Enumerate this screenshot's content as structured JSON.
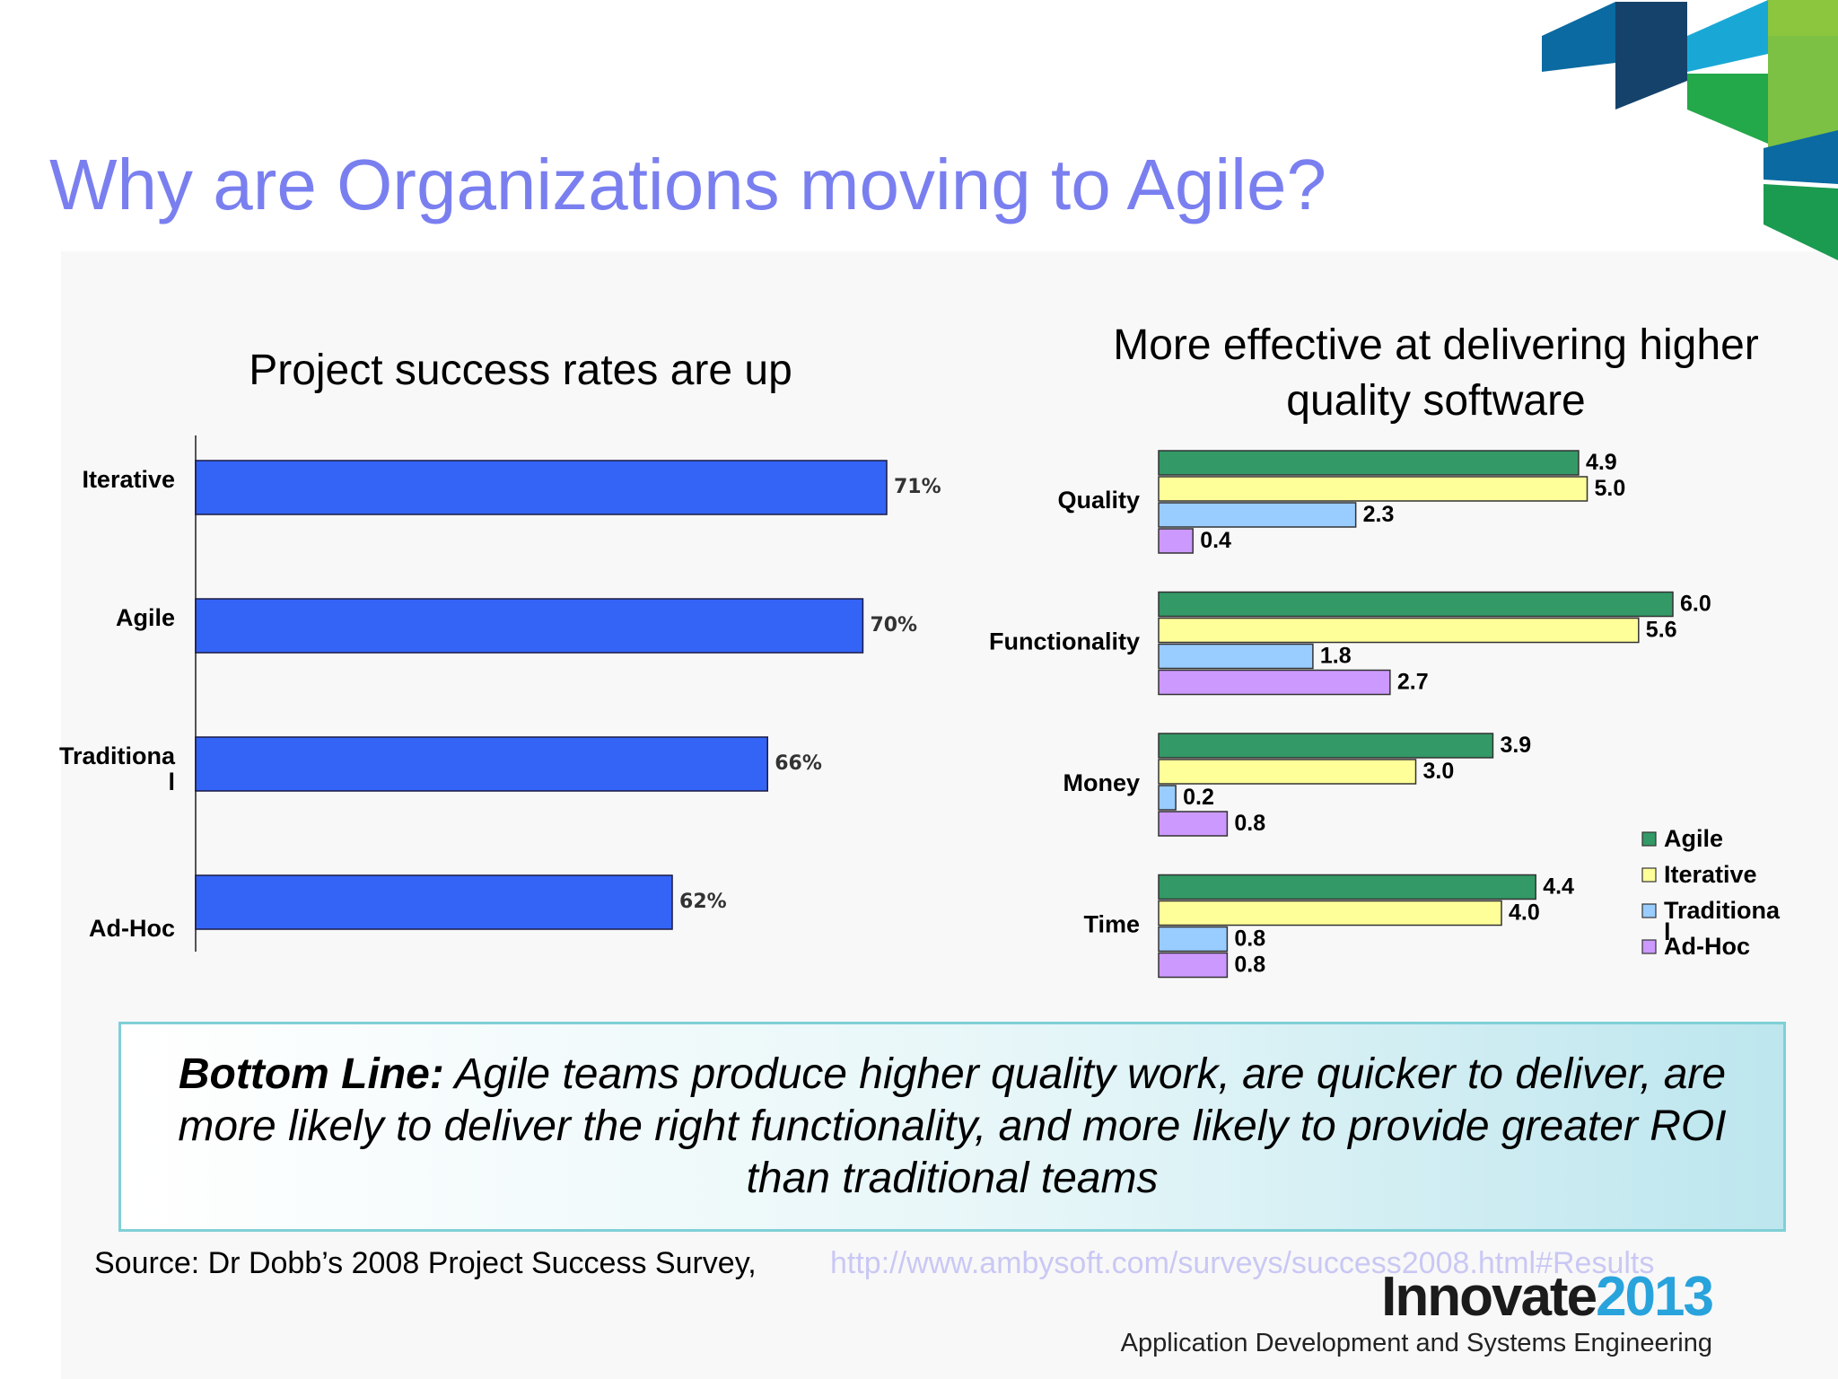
{
  "slide": {
    "title": "Why are Organizations moving to Agile?",
    "bottom_line_label": "Bottom Line:",
    "bottom_line_text": " Agile teams produce higher quality work, are quicker to deliver, are more likely to deliver the right functionality, and more likely to provide greater ROI than traditional teams",
    "source_text": "Source: Dr Dobb’s 2008 Project Success Survey,",
    "source_url": "http://www.ambysoft.com/surveys/success2008.html#Results",
    "brand_name": "Innovate",
    "brand_year": "2013",
    "brand_subtitle": "Application Development and Systems Engineering",
    "deco_colors": [
      "#0a6aa1",
      "#15426b",
      "#19a8d6",
      "#8cc63f",
      "#23a84a",
      "#1a9b50",
      "#7cc143"
    ]
  },
  "chart_data": [
    {
      "type": "bar",
      "orientation": "horizontal",
      "title": "Project success rates are up",
      "categories": [
        "Iterative",
        "Agile",
        "Traditional",
        "Ad-Hoc"
      ],
      "category_display": [
        [
          "Iterative"
        ],
        [
          "Agile"
        ],
        [
          "Traditiona",
          "l"
        ],
        [
          "Ad-Hoc"
        ]
      ],
      "values": [
        71,
        70,
        66,
        62
      ],
      "data_labels": [
        "71%",
        "70%",
        "66%",
        "62%"
      ],
      "xlim": [
        42,
        71
      ],
      "color": "#3464f6"
    },
    {
      "type": "bar",
      "orientation": "horizontal",
      "title": "More effective at delivering higher quality software",
      "categories": [
        "Quality",
        "Functionality",
        "Money",
        "Time"
      ],
      "series": [
        {
          "name": "Agile",
          "color": "#339966",
          "values": [
            4.9,
            6.0,
            3.9,
            4.4
          ],
          "labels": [
            "4.9",
            "6.0",
            "3.9",
            "4.4"
          ]
        },
        {
          "name": "Iterative",
          "color": "#ffff99",
          "values": [
            5.0,
            5.6,
            3.0,
            4.0
          ],
          "labels": [
            "5.0",
            "5.6",
            "3.0",
            "4.0"
          ]
        },
        {
          "name": "Traditional",
          "color": "#99ccff",
          "values": [
            2.3,
            1.8,
            0.2,
            0.8
          ],
          "labels": [
            "2.3",
            "1.8",
            "0.2",
            "0.8"
          ]
        },
        {
          "name": "Ad-Hoc",
          "color": "#cc99ff",
          "values": [
            0.4,
            2.7,
            0.8,
            0.8
          ],
          "labels": [
            "0.4",
            "2.7",
            "0.8",
            "0.8"
          ]
        }
      ],
      "legend_display": [
        [
          "Agile"
        ],
        [
          "Iterative"
        ],
        [
          "Traditiona",
          "l"
        ],
        [
          "Ad-Hoc"
        ]
      ],
      "legend": "bottom-right",
      "xlim": [
        0,
        6
      ]
    }
  ]
}
